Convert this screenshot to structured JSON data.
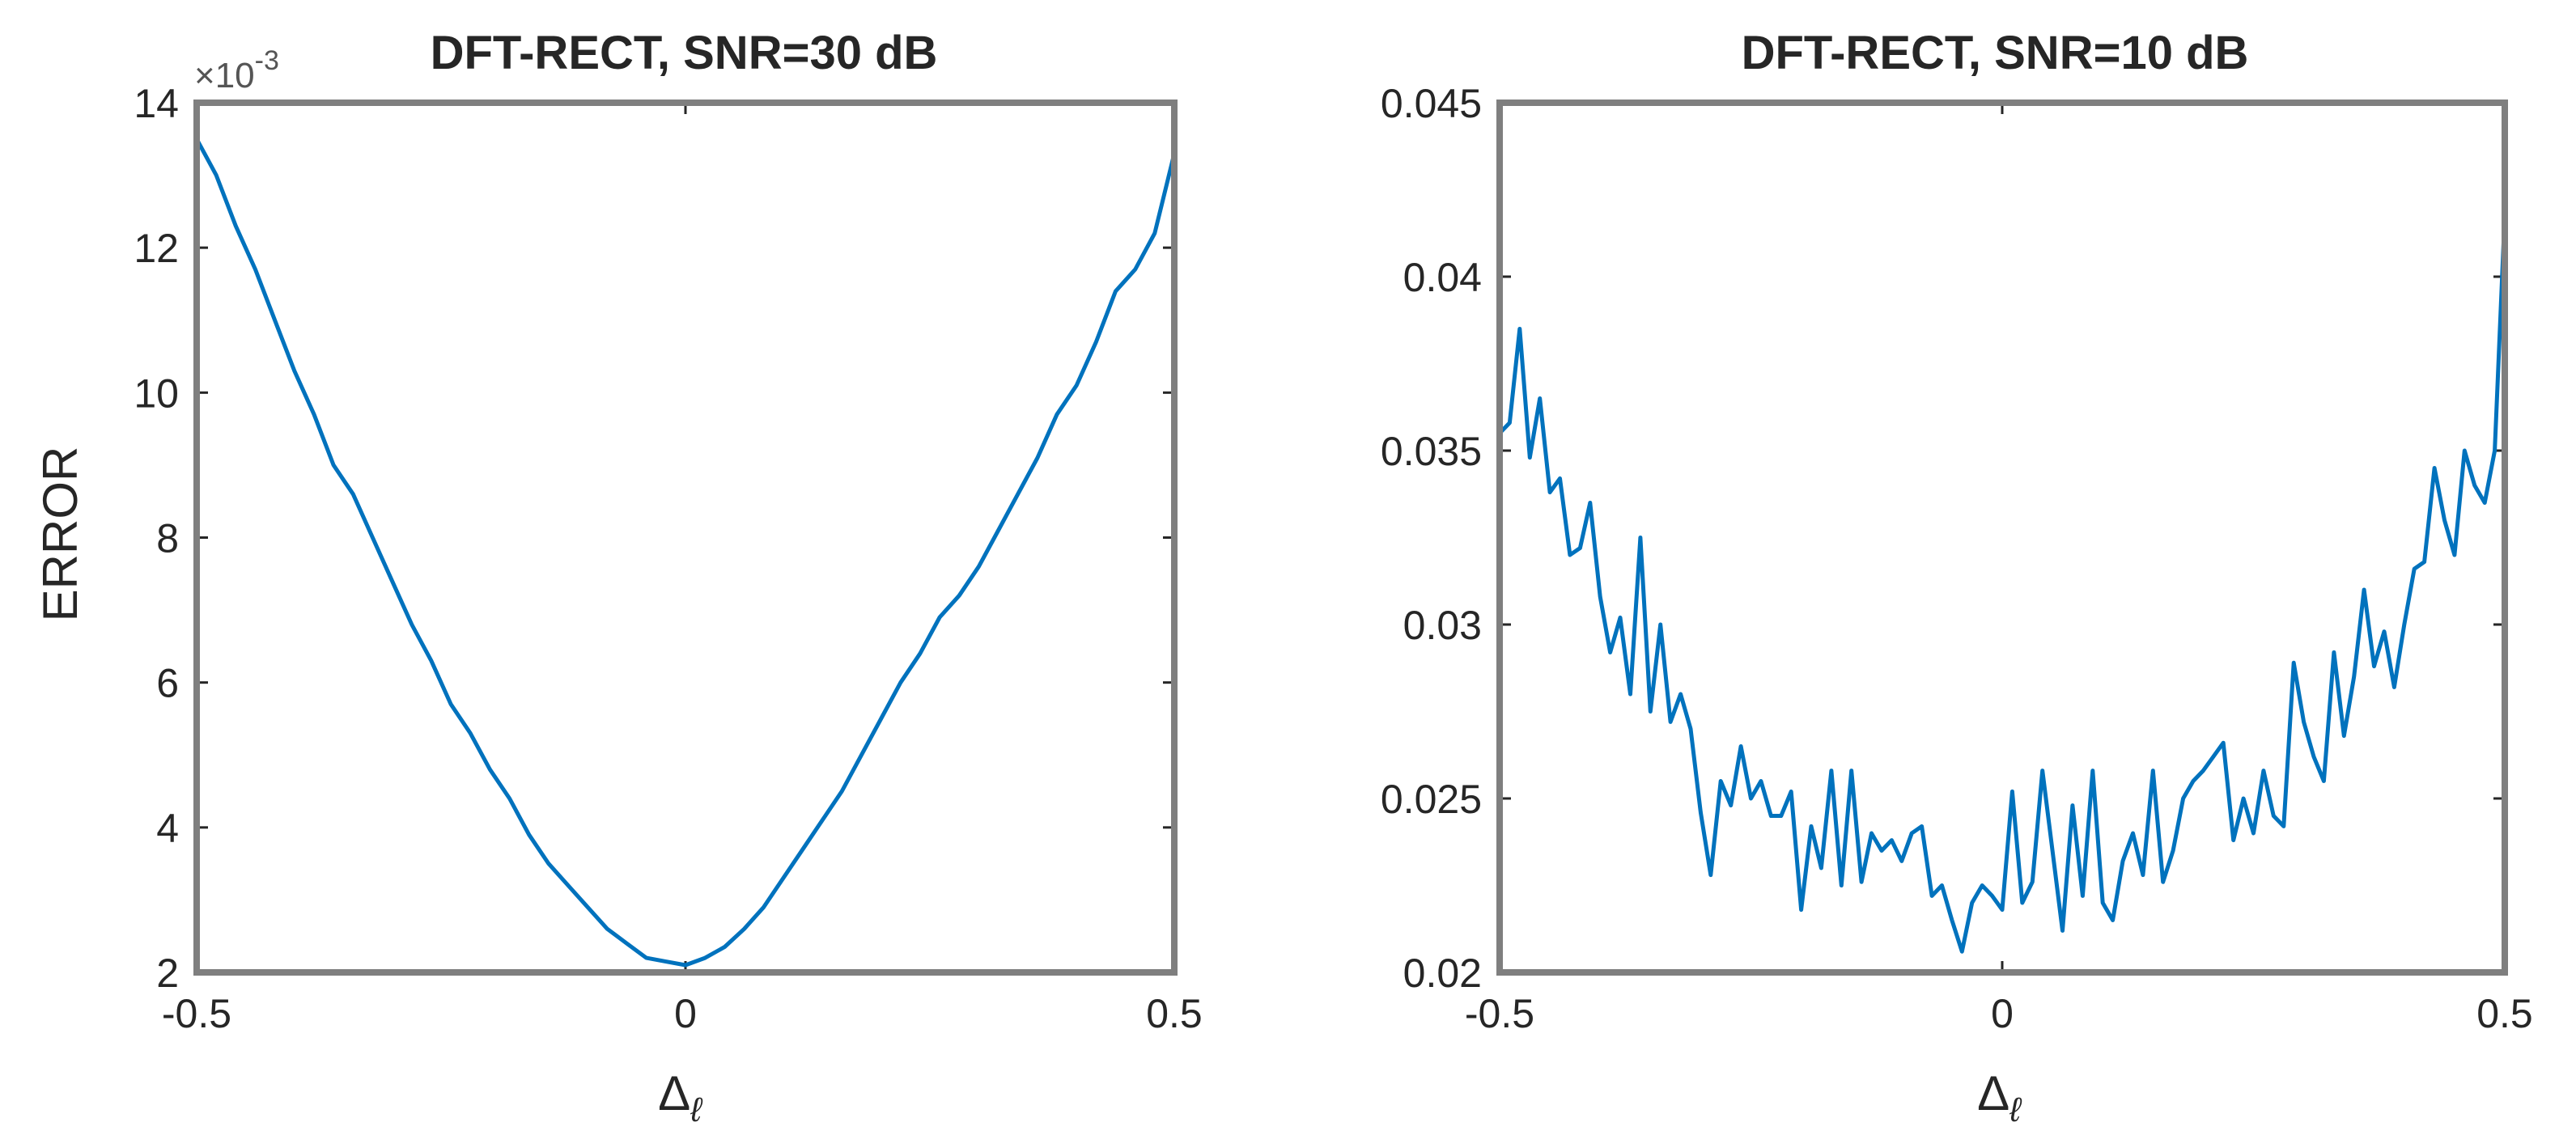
{
  "chart_data": [
    {
      "type": "line",
      "title": "DFT-RECT, SNR=30 dB",
      "xlabel": "Δ",
      "xlabel_subscript": "ℓ",
      "ylabel": "ERROR",
      "xlim": [
        -0.5,
        0.5
      ],
      "ylim": [
        2,
        14
      ],
      "x_ticks": [
        "-0.5",
        "0",
        "0.5"
      ],
      "y_ticks": [
        "2",
        "4",
        "6",
        "8",
        "10",
        "12",
        "14"
      ],
      "y_multiplier": "×10",
      "y_multiplier_exponent": "-3",
      "grid": false,
      "series": [
        {
          "color": "#0072BD",
          "x": [
            -0.5,
            -0.48,
            -0.46,
            -0.44,
            -0.42,
            -0.4,
            -0.38,
            -0.36,
            -0.34,
            -0.32,
            -0.3,
            -0.28,
            -0.26,
            -0.24,
            -0.22,
            -0.2,
            -0.18,
            -0.16,
            -0.14,
            -0.12,
            -0.1,
            -0.08,
            -0.06,
            -0.04,
            -0.02,
            0.0,
            0.02,
            0.04,
            0.06,
            0.08,
            0.1,
            0.12,
            0.14,
            0.16,
            0.18,
            0.2,
            0.22,
            0.24,
            0.26,
            0.28,
            0.3,
            0.32,
            0.34,
            0.36,
            0.38,
            0.4,
            0.42,
            0.44,
            0.46,
            0.48,
            0.5
          ],
          "values": [
            13.5,
            13.0,
            12.3,
            11.7,
            11.0,
            10.3,
            9.7,
            9.0,
            8.6,
            8.0,
            7.4,
            6.8,
            6.3,
            5.7,
            5.3,
            4.8,
            4.4,
            3.9,
            3.5,
            3.2,
            2.9,
            2.6,
            2.4,
            2.2,
            2.15,
            2.1,
            2.2,
            2.35,
            2.6,
            2.9,
            3.3,
            3.7,
            4.1,
            4.5,
            5.0,
            5.5,
            6.0,
            6.4,
            6.9,
            7.2,
            7.6,
            8.1,
            8.6,
            9.1,
            9.7,
            10.1,
            10.7,
            11.4,
            11.7,
            12.2,
            13.3
          ]
        }
      ]
    },
    {
      "type": "line",
      "title": "DFT-RECT, SNR=10 dB",
      "xlabel": "Δ",
      "xlabel_subscript": "ℓ",
      "xlim": [
        -0.5,
        0.5
      ],
      "ylim": [
        0.02,
        0.045
      ],
      "x_ticks": [
        "-0.5",
        "0",
        "0.5"
      ],
      "y_ticks": [
        "0.02",
        "0.025",
        "0.03",
        "0.035",
        "0.04",
        "0.045"
      ],
      "grid": false,
      "series": [
        {
          "color": "#0072BD",
          "x": [
            -0.5,
            -0.49,
            -0.48,
            -0.47,
            -0.46,
            -0.45,
            -0.44,
            -0.43,
            -0.42,
            -0.41,
            -0.4,
            -0.39,
            -0.38,
            -0.37,
            -0.36,
            -0.35,
            -0.34,
            -0.33,
            -0.32,
            -0.31,
            -0.3,
            -0.29,
            -0.28,
            -0.27,
            -0.26,
            -0.25,
            -0.24,
            -0.23,
            -0.22,
            -0.21,
            -0.2,
            -0.19,
            -0.18,
            -0.17,
            -0.16,
            -0.15,
            -0.14,
            -0.13,
            -0.12,
            -0.11,
            -0.1,
            -0.09,
            -0.08,
            -0.07,
            -0.06,
            -0.05,
            -0.04,
            -0.03,
            -0.02,
            -0.01,
            0.0,
            0.01,
            0.02,
            0.03,
            0.04,
            0.05,
            0.06,
            0.07,
            0.08,
            0.09,
            0.1,
            0.11,
            0.12,
            0.13,
            0.14,
            0.15,
            0.16,
            0.17,
            0.18,
            0.19,
            0.2,
            0.21,
            0.22,
            0.23,
            0.24,
            0.25,
            0.26,
            0.27,
            0.28,
            0.29,
            0.3,
            0.31,
            0.32,
            0.33,
            0.34,
            0.35,
            0.36,
            0.37,
            0.38,
            0.39,
            0.4,
            0.41,
            0.42,
            0.43,
            0.44,
            0.45,
            0.46,
            0.47,
            0.48,
            0.49,
            0.5
          ],
          "values": [
            0.0355,
            0.0358,
            0.0385,
            0.0348,
            0.0365,
            0.0338,
            0.0342,
            0.032,
            0.0322,
            0.0335,
            0.0308,
            0.0292,
            0.0302,
            0.028,
            0.0325,
            0.0275,
            0.03,
            0.0272,
            0.028,
            0.027,
            0.0246,
            0.0228,
            0.0255,
            0.0248,
            0.0265,
            0.025,
            0.0255,
            0.0245,
            0.0245,
            0.0252,
            0.0218,
            0.0242,
            0.023,
            0.0258,
            0.0225,
            0.0258,
            0.0226,
            0.024,
            0.0235,
            0.0238,
            0.0232,
            0.024,
            0.0242,
            0.0222,
            0.0225,
            0.0215,
            0.0206,
            0.022,
            0.0225,
            0.0222,
            0.0218,
            0.0252,
            0.022,
            0.0226,
            0.0258,
            0.0235,
            0.0212,
            0.0248,
            0.0222,
            0.0258,
            0.022,
            0.0215,
            0.0232,
            0.024,
            0.0228,
            0.0258,
            0.0226,
            0.0235,
            0.025,
            0.0255,
            0.0258,
            0.0262,
            0.0266,
            0.0238,
            0.025,
            0.024,
            0.0258,
            0.0245,
            0.0242,
            0.0289,
            0.0272,
            0.0262,
            0.0255,
            0.0292,
            0.0268,
            0.0285,
            0.031,
            0.0288,
            0.0298,
            0.0282,
            0.03,
            0.0316,
            0.0318,
            0.0345,
            0.033,
            0.032,
            0.035,
            0.034,
            0.0335,
            0.035,
            0.0418
          ]
        }
      ]
    }
  ]
}
